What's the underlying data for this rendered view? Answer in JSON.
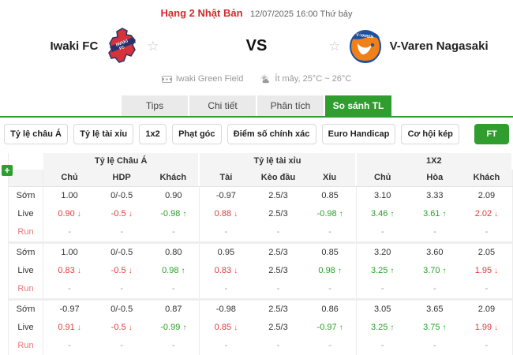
{
  "header": {
    "league": "Hạng 2 Nhật Bản",
    "datetime": "12/07/2025 16:00 Thứ bảy"
  },
  "match": {
    "home": {
      "name": "Iwaki FC"
    },
    "away": {
      "name": "V-Varen Nagasaki"
    },
    "vs": "VS",
    "venue": "Iwaki Green Field",
    "weather": "Ít mây, 25°C ~ 26°C"
  },
  "tabs": [
    {
      "label": "Tips",
      "active": false
    },
    {
      "label": "Chi tiết",
      "active": false
    },
    {
      "label": "Phân tích",
      "active": false
    },
    {
      "label": "So sánh TL",
      "active": true
    }
  ],
  "filters": {
    "buttons": [
      "Tỷ lệ châu Á",
      "Tỷ lệ tài xỉu",
      "1x2",
      "Phạt góc",
      "Điểm số chính xác",
      "Euro Handicap",
      "Cơ hội kép"
    ],
    "period_label": "FT"
  },
  "icons": {
    "star": "☆",
    "plus": "+",
    "down_arrow": "↓",
    "up_arrow": "↑"
  },
  "colors": {
    "accent_green": "#2f9e2f",
    "league_red": "#d02b2b",
    "down_red": "#e4393c",
    "up_green": "#2aa12a"
  },
  "odds_table": {
    "group_headers": [
      "Tỷ lệ Châu Á",
      "Tỷ lệ tài xỉu",
      "1X2"
    ],
    "sub_headers": [
      "Chủ",
      "HDP",
      "Khách",
      "Tài",
      "Kèo đầu",
      "Xỉu",
      "Chủ",
      "Hòa",
      "Khách"
    ],
    "row_labels": [
      "Sớm",
      "Live",
      "Run"
    ],
    "groups": [
      {
        "early": [
          "1.00",
          "0/-0.5",
          "0.90",
          "-0.97",
          "2.5/3",
          "0.85",
          "3.10",
          "3.33",
          "2.09"
        ],
        "live": [
          "0.90",
          "-0.5",
          "-0.98",
          "0.88",
          "2.5/3",
          "-0.98",
          "3.46",
          "3.61",
          "2.02"
        ],
        "live_trend": [
          "down",
          "down",
          "up",
          "down",
          "none",
          "up",
          "up",
          "up",
          "down"
        ],
        "run": [
          "-",
          "-",
          "-",
          "-",
          "-",
          "-",
          "-",
          "-",
          "-"
        ]
      },
      {
        "early": [
          "1.00",
          "0/-0.5",
          "0.80",
          "0.95",
          "2.5/3",
          "0.85",
          "3.20",
          "3.60",
          "2.05"
        ],
        "live": [
          "0.83",
          "-0.5",
          "0.98",
          "0.83",
          "2.5/3",
          "0.98",
          "3.25",
          "3.70",
          "1.95"
        ],
        "live_trend": [
          "down",
          "down",
          "up",
          "down",
          "none",
          "up",
          "up",
          "up",
          "down"
        ],
        "run": [
          "-",
          "-",
          "-",
          "-",
          "-",
          "-",
          "-",
          "-",
          "-"
        ]
      },
      {
        "early": [
          "-0.97",
          "0/-0.5",
          "0.87",
          "-0.98",
          "2.5/3",
          "0.86",
          "3.05",
          "3.65",
          "2.09"
        ],
        "live": [
          "0.91",
          "-0.5",
          "-0.99",
          "0.85",
          "2.5/3",
          "-0.97",
          "3.25",
          "3.75",
          "1.99"
        ],
        "live_trend": [
          "down",
          "down",
          "up",
          "down",
          "none",
          "up",
          "up",
          "up",
          "down"
        ],
        "run": [
          "-",
          "-",
          "-",
          "-",
          "-",
          "-",
          "-",
          "-",
          "-"
        ]
      }
    ]
  }
}
